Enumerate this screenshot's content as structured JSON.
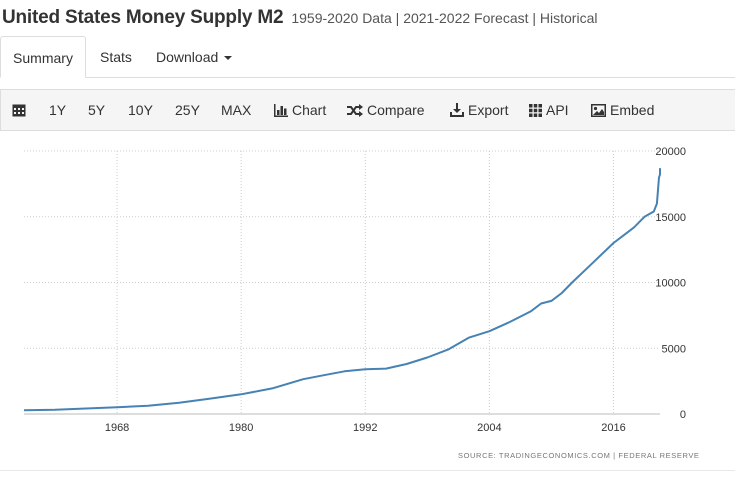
{
  "header": {
    "title": "United States Money Supply M2",
    "subtitle": "1959-2020 Data | 2021-2022 Forecast | Historical"
  },
  "tabs": [
    {
      "label": "Summary",
      "active": true
    },
    {
      "label": "Stats",
      "active": false
    },
    {
      "label": "Download",
      "active": false
    }
  ],
  "toolbar": {
    "calendar_icon": "calendar-icon",
    "range_1y": "1Y",
    "range_5y": "5Y",
    "range_10y": "10Y",
    "range_25y": "25Y",
    "range_max": "MAX",
    "chart_label": "Chart",
    "compare_label": "Compare",
    "export_label": "Export",
    "api_label": "API",
    "embed_label": "Embed"
  },
  "colors": {
    "line": "#4682b4",
    "grid": "#cccccc",
    "toolbar_bg": "#f5f5f5",
    "text": "#333333"
  },
  "source_text": "SOURCE: TRADINGECONOMICS.COM  |  FEDERAL RESERVE",
  "chart_data": {
    "type": "line",
    "title": "",
    "xlabel": "",
    "ylabel": "",
    "xlim": [
      1959,
      2020.5
    ],
    "ylim": [
      0,
      20000
    ],
    "x_ticks": [
      "1968",
      "1980",
      "1992",
      "2004",
      "2016"
    ],
    "y_ticks": [
      "20000",
      "15000",
      "10000",
      "5000",
      "0"
    ],
    "grid": true,
    "series": [
      {
        "name": "",
        "x": [
          1959,
          1962,
          1965,
          1968,
          1971,
          1974,
          1977,
          1980,
          1983,
          1986,
          1988,
          1990,
          1992,
          1994,
          1996,
          1998,
          2000,
          2002,
          2004,
          2006,
          2008,
          2009,
          2010,
          2011,
          2012,
          2014,
          2016,
          2017,
          2018,
          2019,
          2019.9,
          2020.2,
          2020.4,
          2020.6,
          2020.8,
          2021.0
        ],
        "values": [
          290,
          330,
          420,
          520,
          620,
          850,
          1170,
          1500,
          1950,
          2650,
          2950,
          3250,
          3400,
          3450,
          3800,
          4300,
          4900,
          5800,
          6300,
          7000,
          7800,
          8400,
          8600,
          9200,
          10000,
          11500,
          13000,
          13600,
          14200,
          15000,
          15400,
          16000,
          18000,
          18200,
          18400,
          18700
        ]
      }
    ]
  }
}
